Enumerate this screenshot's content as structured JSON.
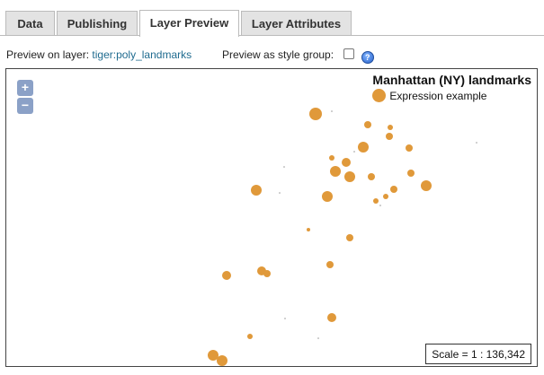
{
  "tabs": [
    {
      "label": "Data",
      "active": false
    },
    {
      "label": "Publishing",
      "active": false
    },
    {
      "label": "Layer Preview",
      "active": true
    },
    {
      "label": "Layer Attributes",
      "active": false
    }
  ],
  "preview": {
    "prefix": "Preview on layer:",
    "layer_name": "tiger:poly_landmarks",
    "style_group_label": "Preview as style group:",
    "style_group_checked": false
  },
  "map": {
    "zoom_in": "+",
    "zoom_out": "−",
    "legend": {
      "title": "Manhattan (NY) landmarks",
      "rule_label": "Expression example",
      "symbol_color": "#e0993a"
    },
    "scale_text": "Scale = 1 : 136,342",
    "point_color": "#e0993a",
    "dot_color": "#999999"
  },
  "icons": {
    "help": "help-icon",
    "checkbox": "checkbox-icon"
  }
}
